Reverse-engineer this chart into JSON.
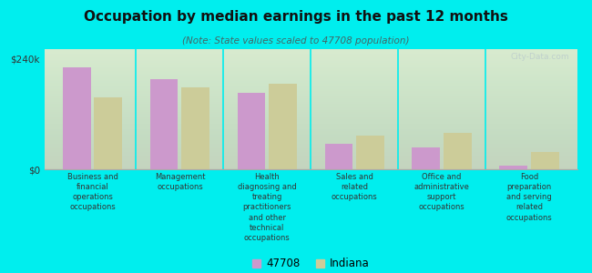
{
  "title": "Occupation by median earnings in the past 12 months",
  "subtitle": "(Note: State values scaled to 47708 population)",
  "background_color": "#00eeee",
  "plot_bg_top": "#eef2e0",
  "plot_bg_bottom": "#f5f8ee",
  "categories": [
    "Business and\nfinancial\noperations\noccupations",
    "Management\noccupations",
    "Health\ndiagnosing and\ntreating\npractitioners\nand other\ntechnical\noccupations",
    "Sales and\nrelated\noccupations",
    "Office and\nadministrative\nsupport\noccupations",
    "Food\npreparation\nand serving\nrelated\noccupations"
  ],
  "values_47708": [
    220000,
    195000,
    165000,
    55000,
    48000,
    8000
  ],
  "values_indiana": [
    155000,
    178000,
    185000,
    72000,
    78000,
    38000
  ],
  "color_47708": "#cc99cc",
  "color_indiana": "#cccc99",
  "ylim": [
    0,
    260000
  ],
  "yticks": [
    0,
    240000
  ],
  "ytick_labels": [
    "$0",
    "$240k"
  ],
  "legend_47708": "47708",
  "legend_indiana": "Indiana",
  "watermark": "City-Data.com"
}
